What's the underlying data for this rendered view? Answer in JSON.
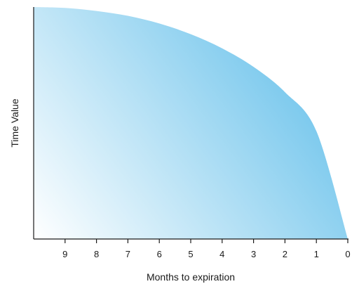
{
  "chart_data": {
    "type": "area",
    "title": "",
    "xlabel": "Months to expiration",
    "ylabel": "Time Value",
    "x_reversed": true,
    "xlim": [
      10,
      0
    ],
    "categories": [
      "9",
      "8",
      "7",
      "6",
      "5",
      "4",
      "3",
      "2",
      "1",
      "0"
    ],
    "x": [
      9,
      8,
      7,
      6,
      5,
      4,
      3,
      2,
      1,
      0
    ],
    "series": [
      {
        "values_relative": [
          0.996,
          0.983,
          0.962,
          0.929,
          0.883,
          0.822,
          0.742,
          0.633,
          0.465,
          0.0
        ]
      }
    ],
    "ylim": [
      0,
      1
    ],
    "grid": false,
    "fill_gradient": {
      "light": "#ffffff",
      "dark": "#54b9e8"
    }
  }
}
